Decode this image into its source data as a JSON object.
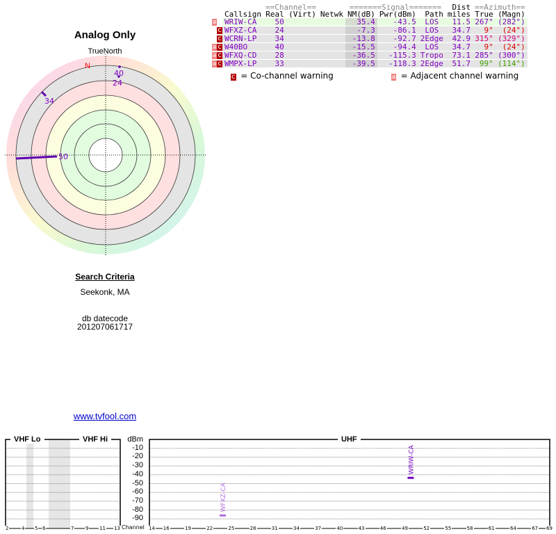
{
  "polar": {
    "title": "Analog Only",
    "north_label": "TrueNorth",
    "n_marker": "N",
    "markers": [
      {
        "channel": "50",
        "azimuth": 267,
        "nm": 35.4
      },
      {
        "channel": "24",
        "azimuth": 9,
        "nm": -7.3
      },
      {
        "channel": "34",
        "azimuth": 315,
        "nm": -13.8
      },
      {
        "channel": "40",
        "azimuth": 9,
        "nm": -15.5
      }
    ]
  },
  "search": {
    "heading": "Search Criteria",
    "location": "Seekonk, MA",
    "datecode_label": "db datecode",
    "datecode": "201207061717",
    "link": "www.tvfool.com"
  },
  "table": {
    "group_channel": "==Channel==",
    "group_signal": "=======Signal=======",
    "group_dist": "Dist",
    "group_azimuth": "==Azimuth==",
    "headers": [
      "Callsign",
      "Real",
      "(Virt)",
      "Netwk",
      "NM(dB)",
      "Pwr(dBm)",
      "Path",
      "miles",
      "True",
      "(Magn)"
    ],
    "rows": [
      {
        "flags": "a",
        "callsign": "WRIW-CA",
        "real": "50",
        "virt": "",
        "netwk": "",
        "nm": "35.4",
        "pwr": "-43.5",
        "path": "LOS",
        "miles": "11.5",
        "true": "267°",
        "magn": "(282°)",
        "azcolor": "#8000c0"
      },
      {
        "flags": "c",
        "callsign": "WFXZ-CA",
        "real": "24",
        "virt": "",
        "netwk": "",
        "nm": "-7.3",
        "pwr": "-86.1",
        "path": "LOS",
        "miles": "34.7",
        "true": "9°",
        "magn": "(24°)",
        "azcolor": "#e00000"
      },
      {
        "flags": "c",
        "callsign": "WCRN-LP",
        "real": "34",
        "virt": "",
        "netwk": "",
        "nm": "-13.8",
        "pwr": "-92.7",
        "path": "2Edge",
        "miles": "42.9",
        "true": "315°",
        "magn": "(329°)",
        "azcolor": "#d00080"
      },
      {
        "flags": "ac",
        "callsign": "W40BO",
        "real": "40",
        "virt": "",
        "netwk": "",
        "nm": "-15.5",
        "pwr": "-94.4",
        "path": "LOS",
        "miles": "34.7",
        "true": "9°",
        "magn": "(24°)",
        "azcolor": "#e00000"
      },
      {
        "flags": "ac",
        "callsign": "WFXQ-CD",
        "real": "28",
        "virt": "",
        "netwk": "",
        "nm": "-36.5",
        "pwr": "-115.3",
        "path": "Tropo",
        "miles": "73.1",
        "true": "285°",
        "magn": "(300°)",
        "azcolor": "#8000c0"
      },
      {
        "flags": "ac",
        "callsign": "WMPX-LP",
        "real": "33",
        "virt": "",
        "netwk": "",
        "nm": "-39.5",
        "pwr": "-118.3",
        "path": "2Edge",
        "miles": "51.7",
        "true": "99°",
        "magn": "(114°)",
        "azcolor": "#40a000"
      }
    ],
    "legend_c_icon": "c",
    "legend_c": "= Co-channel warning",
    "legend_a_icon": "a",
    "legend_a": "= Adjacent channel warning"
  },
  "chart_data": {
    "type": "bar",
    "ylabel": "dBm",
    "xlabel": "Channel",
    "ylim": [
      -100,
      0
    ],
    "yticks": [
      "-10",
      "-20",
      "-30",
      "-40",
      "-50",
      "-60",
      "-70",
      "-80",
      "-90"
    ],
    "bands": [
      "VHF Lo",
      "VHF Hi",
      "UHF"
    ],
    "vhf_ticks": [
      "2",
      "4",
      "5",
      "6",
      "7",
      "9",
      "11",
      "13"
    ],
    "uhf_ticks": [
      "14",
      "16",
      "19",
      "22",
      "25",
      "28",
      "31",
      "34",
      "37",
      "40",
      "43",
      "46",
      "49",
      "52",
      "55",
      "58",
      "61",
      "64",
      "67",
      "69"
    ],
    "series": [
      {
        "name": "WRIW-CA",
        "channel": 50,
        "dbm": -43.5,
        "color": "#7000c0"
      },
      {
        "name": "WFXZ-CA",
        "channel": 24,
        "dbm": -86.1,
        "color": "#b070e0"
      }
    ]
  }
}
